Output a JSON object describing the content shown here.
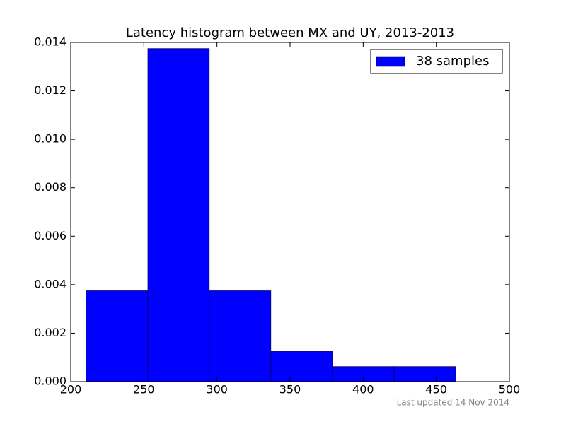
{
  "chart_data": {
    "type": "histogram",
    "title": "Latency histogram between MX and UY, 2013-2013",
    "bins": [
      210.6,
      252.7,
      294.8,
      336.9,
      379,
      421.1,
      463.2
    ],
    "series": [
      {
        "name": "38 samples",
        "color": "#0000ff",
        "values": [
          0.00375,
          0.01375,
          0.00375,
          0.00125,
          0.000625,
          0.000625
        ]
      }
    ],
    "xlim": [
      200,
      500
    ],
    "xticks": [
      200,
      250,
      300,
      350,
      400,
      450,
      500
    ],
    "ylim": [
      0,
      0.014
    ],
    "yticks": [
      {
        "value": 0,
        "label": "0.000"
      },
      {
        "value": 0.002,
        "label": "0.002"
      },
      {
        "value": 0.004,
        "label": "0.004"
      },
      {
        "value": 0.006,
        "label": "0.006"
      },
      {
        "value": 0.008,
        "label": "0.008"
      },
      {
        "value": 0.01,
        "label": "0.010"
      },
      {
        "value": 0.012,
        "label": "0.012"
      },
      {
        "value": 0.014,
        "label": "0.014"
      }
    ],
    "legend": "upper right",
    "footer": "Last updated 14 Nov 2014"
  }
}
